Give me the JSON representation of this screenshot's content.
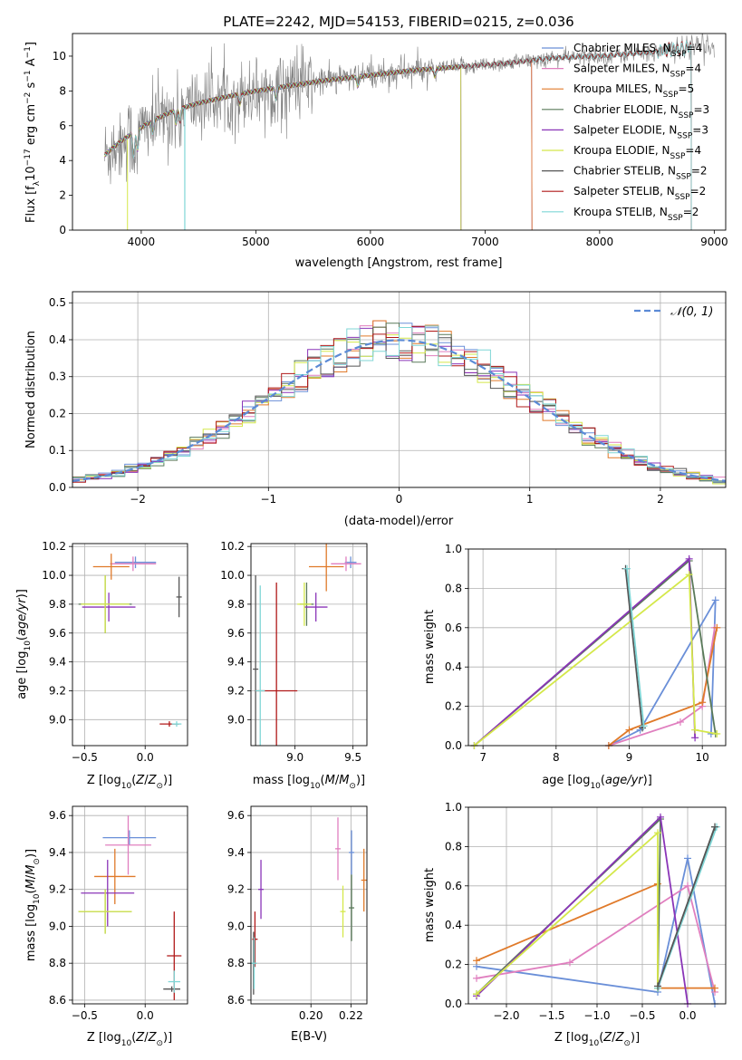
{
  "figure_title": "PLATE=2242, MJD=54153, FIBERID=0215, z=0.036",
  "colors": {
    "chabrier_miles": "#6a8fd8",
    "salpeter_miles": "#e07fbf",
    "kroupa_miles": "#e07a2a",
    "chabrier_elodie": "#5a7a5a",
    "salpeter_elodie": "#8a35b8",
    "kroupa_elodie": "#d4e84a",
    "chabrier_stelib": "#555555",
    "salpeter_stelib": "#b01818",
    "kroupa_stelib": "#7fd6d6",
    "data": "#808080",
    "normal": "#5b8ad6"
  },
  "chart_data": [
    {
      "id": "spectrum",
      "type": "line",
      "xlabel": "wavelength [Angstrom, rest frame]",
      "ylabel": "Flux [f_λ10^-17 erg cm^-2 s^-1 A^-1]",
      "xlim": [
        3400,
        9100
      ],
      "ylim": [
        0,
        11.3
      ],
      "xticks": [
        4000,
        5000,
        6000,
        7000,
        8000,
        9000
      ],
      "yticks": [
        0,
        2,
        4,
        6,
        8,
        10
      ],
      "grid": false,
      "legend_position": "right",
      "legend": [
        {
          "name": "Chabrier MILES, N",
          "sub": "SSP",
          "suffix": "=4",
          "color": "#6a8fd8"
        },
        {
          "name": "Salpeter MILES, N",
          "sub": "SSP",
          "suffix": "=4",
          "color": "#e07fbf"
        },
        {
          "name": "Kroupa MILES, N",
          "sub": "SSP",
          "suffix": "=5",
          "color": "#e07a2a"
        },
        {
          "name": "Chabrier ELODIE, N",
          "sub": "SSP",
          "suffix": "=3",
          "color": "#5a7a5a"
        },
        {
          "name": "Salpeter ELODIE, N",
          "sub": "SSP",
          "suffix": "=3",
          "color": "#8a35b8"
        },
        {
          "name": "Kroupa ELODIE, N",
          "sub": "SSP",
          "suffix": "=4",
          "color": "#d4e84a"
        },
        {
          "name": "Chabrier STELIB, N",
          "sub": "SSP",
          "suffix": "=2",
          "color": "#555555"
        },
        {
          "name": "Salpeter STELIB, N",
          "sub": "SSP",
          "suffix": "=2",
          "color": "#b01818"
        },
        {
          "name": "Kroupa STELIB, N",
          "sub": "SSP",
          "suffix": "=2",
          "color": "#7fd6d6"
        }
      ],
      "model_continuum": {
        "x": [
          3680,
          3800,
          3950,
          4100,
          4300,
          4500,
          4700,
          5000,
          5300,
          5600,
          6000,
          6400,
          6800,
          7200,
          7600,
          8000,
          8400,
          8800,
          9000
        ],
        "y": [
          4.3,
          5.0,
          5.7,
          6.3,
          6.9,
          7.3,
          7.6,
          8.0,
          8.3,
          8.6,
          8.9,
          9.2,
          9.4,
          9.6,
          9.9,
          10.0,
          10.2,
          10.5,
          10.6
        ]
      },
      "model_ranges": {
        "miles": [
          3680,
          7410
        ],
        "elodie": [
          3680,
          6790
        ],
        "stelib": [
          3680,
          8800
        ]
      },
      "data_range": [
        3680,
        9000
      ]
    },
    {
      "id": "residuals",
      "type": "line",
      "xlabel": "(data-model)/error",
      "ylabel": "Normed distribution",
      "xlim": [
        -2.5,
        2.5
      ],
      "ylim": [
        0,
        0.53
      ],
      "xticks": [
        -2,
        -1,
        0,
        1,
        2
      ],
      "yticks": [
        0.0,
        0.1,
        0.2,
        0.3,
        0.4,
        0.5
      ],
      "grid": true,
      "legend_position": "top-right",
      "legend": [
        {
          "name": "𝒩(0, 1)",
          "color": "#5b8ad6",
          "style": "dashed"
        }
      ],
      "bin_width": 0.1,
      "histogram_range": [
        -2.5,
        2.5
      ],
      "histogram_series": 9
    },
    {
      "id": "age_vs_Z",
      "type": "scatter",
      "xlabel": "Z [log10(Z/Z⊙)]",
      "ylabel": "age [log10(age/yr)]",
      "xlim": [
        -0.6,
        0.35
      ],
      "ylim": [
        8.82,
        10.22
      ],
      "xticks": [
        -0.5,
        0.0
      ],
      "yticks": [
        9.0,
        9.2,
        9.4,
        9.6,
        9.8,
        10.0,
        10.2
      ],
      "grid": true,
      "points": [
        {
          "x": -0.08,
          "y": 10.09,
          "xerr": 0.17,
          "yerr": 0.04,
          "color": "#6a8fd8"
        },
        {
          "x": -0.1,
          "y": 10.08,
          "xerr": 0.19,
          "yerr": 0.05,
          "color": "#e07fbf"
        },
        {
          "x": -0.28,
          "y": 10.06,
          "xerr": 0.15,
          "yerr": 0.09,
          "color": "#e07a2a"
        },
        {
          "x": -0.33,
          "y": 9.8,
          "xerr": 0.22,
          "yerr": 0.2,
          "color": "#5a7a5a"
        },
        {
          "x": -0.3,
          "y": 9.78,
          "xerr": 0.22,
          "yerr": 0.1,
          "color": "#8a35b8"
        },
        {
          "x": -0.33,
          "y": 9.8,
          "xerr": 0.2,
          "yerr": 0.2,
          "color": "#d4e84a"
        },
        {
          "x": 0.28,
          "y": 9.85,
          "xerr": 0.0,
          "yerr": 0.14,
          "color": "#555555"
        },
        {
          "x": 0.2,
          "y": 8.97,
          "xerr": 0.08,
          "yerr": 0.0,
          "color": "#b01818"
        },
        {
          "x": 0.26,
          "y": 8.97,
          "xerr": 0.04,
          "yerr": 0.0,
          "color": "#7fd6d6"
        }
      ]
    },
    {
      "id": "age_vs_mass",
      "type": "scatter",
      "xlabel": "mass [log10(M/M⊙)]",
      "ylabel": "",
      "xlim": [
        8.62,
        9.62
      ],
      "ylim": [
        8.82,
        10.22
      ],
      "xticks": [
        9.0,
        9.5
      ],
      "yticks": [
        9.0,
        9.2,
        9.4,
        9.6,
        9.8,
        10.0,
        10.2
      ],
      "grid": true,
      "points": [
        {
          "x": 9.48,
          "y": 10.09,
          "xerr": 0.05,
          "yerr": 0.04,
          "color": "#6a8fd8"
        },
        {
          "x": 9.44,
          "y": 10.08,
          "xerr": 0.13,
          "yerr": 0.05,
          "color": "#e07fbf"
        },
        {
          "x": 9.27,
          "y": 10.06,
          "xerr": 0.15,
          "yerr": 0.17,
          "color": "#e07a2a"
        },
        {
          "x": 9.1,
          "y": 9.8,
          "xerr": 0.06,
          "yerr": 0.15,
          "color": "#5a7a5a"
        },
        {
          "x": 9.18,
          "y": 9.78,
          "xerr": 0.1,
          "yerr": 0.1,
          "color": "#8a35b8"
        },
        {
          "x": 9.08,
          "y": 9.8,
          "xerr": 0.06,
          "yerr": 0.15,
          "color": "#d4e84a"
        },
        {
          "x": 8.66,
          "y": 9.35,
          "xerr": 0.0,
          "yerr": 0.65,
          "color": "#555555"
        },
        {
          "x": 8.84,
          "y": 9.2,
          "xerr": 0.18,
          "yerr": 0.75,
          "color": "#b01818"
        },
        {
          "x": 8.7,
          "y": 9.2,
          "xerr": 0.04,
          "yerr": 0.73,
          "color": "#7fd6d6"
        }
      ]
    },
    {
      "id": "weight_vs_age",
      "type": "line",
      "xlabel": "age [log10(age/yr)]",
      "ylabel": "mass weight",
      "xlim": [
        6.8,
        10.32
      ],
      "ylim": [
        0,
        1.0
      ],
      "xticks": [
        7,
        8,
        9,
        10
      ],
      "yticks": [
        0.0,
        0.2,
        0.4,
        0.6,
        0.8,
        1.0
      ],
      "grid": true,
      "series": [
        {
          "color": "#6a8fd8",
          "x": [
            8.72,
            9.15,
            10.18,
            10.12
          ],
          "y": [
            0.0,
            0.08,
            0.74,
            0.06
          ]
        },
        {
          "color": "#e07fbf",
          "x": [
            8.72,
            9.7,
            10.0,
            10.17
          ],
          "y": [
            0.0,
            0.12,
            0.2,
            0.6
          ]
        },
        {
          "color": "#e07a2a",
          "x": [
            8.72,
            9.0,
            10.0,
            10.2
          ],
          "y": [
            0.0,
            0.08,
            0.22,
            0.6
          ]
        },
        {
          "color": "#5a7a5a",
          "x": [
            6.88,
            9.82,
            10.18
          ],
          "y": [
            0.0,
            0.94,
            0.06
          ]
        },
        {
          "color": "#8a35b8",
          "x": [
            6.88,
            9.82,
            9.9
          ],
          "y": [
            0.0,
            0.95,
            0.04
          ]
        },
        {
          "color": "#d4e84a",
          "x": [
            6.88,
            9.82,
            9.9,
            10.2
          ],
          "y": [
            0.0,
            0.87,
            0.08,
            0.06
          ]
        },
        {
          "color": "#555555",
          "x": [
            8.95,
            9.18
          ],
          "y": [
            0.9,
            0.09
          ]
        },
        {
          "color": "#7fd6d6",
          "x": [
            8.97,
            9.2
          ],
          "y": [
            0.9,
            0.1
          ]
        }
      ]
    },
    {
      "id": "mass_vs_Z",
      "type": "scatter",
      "xlabel": "Z [log10(Z/Z⊙)]",
      "ylabel": "mass [log10(M/M⊙)]",
      "xlim": [
        -0.6,
        0.35
      ],
      "ylim": [
        8.58,
        9.65
      ],
      "xticks": [
        -0.5,
        0.0
      ],
      "yticks": [
        8.6,
        8.8,
        9.0,
        9.2,
        9.4,
        9.6
      ],
      "grid": true,
      "points": [
        {
          "x": -0.13,
          "y": 9.48,
          "xerr": 0.22,
          "yerr": 0.04,
          "color": "#6a8fd8"
        },
        {
          "x": -0.14,
          "y": 9.44,
          "xerr": 0.19,
          "yerr": 0.16,
          "color": "#e07fbf"
        },
        {
          "x": -0.25,
          "y": 9.27,
          "xerr": 0.17,
          "yerr": 0.15,
          "color": "#e07a2a"
        },
        {
          "x": -0.33,
          "y": 9.08,
          "xerr": 0.22,
          "yerr": 0.12,
          "color": "#5a7a5a"
        },
        {
          "x": -0.31,
          "y": 9.18,
          "xerr": 0.22,
          "yerr": 0.18,
          "color": "#8a35b8"
        },
        {
          "x": -0.33,
          "y": 9.08,
          "xerr": 0.22,
          "yerr": 0.12,
          "color": "#d4e84a"
        },
        {
          "x": 0.22,
          "y": 8.66,
          "xerr": 0.07,
          "yerr": 0.0,
          "color": "#555555"
        },
        {
          "x": 0.24,
          "y": 8.84,
          "xerr": 0.06,
          "yerr": 0.24,
          "color": "#b01818"
        },
        {
          "x": 0.24,
          "y": 8.7,
          "xerr": 0.05,
          "yerr": 0.06,
          "color": "#7fd6d6"
        }
      ]
    },
    {
      "id": "mass_vs_ebv",
      "type": "scatter",
      "xlabel": "E(B-V)",
      "ylabel": "",
      "xlim": [
        0.17,
        0.228
      ],
      "ylim": [
        8.58,
        9.65
      ],
      "xticks": [
        0.2,
        0.22
      ],
      "yticks": [
        8.6,
        8.8,
        9.0,
        9.2,
        9.4,
        9.6
      ],
      "grid": true,
      "points": [
        {
          "x": 0.2203,
          "y": 9.4,
          "xerr": 0.0,
          "yerr": 0.12,
          "color": "#6a8fd8"
        },
        {
          "x": 0.2135,
          "y": 9.42,
          "xerr": 0.0,
          "yerr": 0.17,
          "color": "#e07fbf"
        },
        {
          "x": 0.2265,
          "y": 9.25,
          "xerr": 0.0,
          "yerr": 0.17,
          "color": "#e07a2a"
        },
        {
          "x": 0.2203,
          "y": 9.1,
          "xerr": 0.0,
          "yerr": 0.18,
          "color": "#5a7a5a"
        },
        {
          "x": 0.175,
          "y": 9.2,
          "xerr": 0.0,
          "yerr": 0.16,
          "color": "#8a35b8"
        },
        {
          "x": 0.216,
          "y": 9.08,
          "xerr": 0.0,
          "yerr": 0.14,
          "color": "#d4e84a"
        },
        {
          "x": 0.1713,
          "y": 8.8,
          "xerr": 0.0,
          "yerr": 0.17,
          "color": "#555555"
        },
        {
          "x": 0.172,
          "y": 8.93,
          "xerr": 0.0,
          "yerr": 0.15,
          "color": "#b01818"
        },
        {
          "x": 0.1716,
          "y": 8.8,
          "xerr": 0.0,
          "yerr": 0.14,
          "color": "#7fd6d6"
        }
      ]
    },
    {
      "id": "weight_vs_Z",
      "type": "line",
      "xlabel": "Z [log10(Z/Z⊙)]",
      "ylabel": "mass weight",
      "xlim": [
        -2.42,
        0.42
      ],
      "ylim": [
        0,
        1.0
      ],
      "xticks": [
        -2.0,
        -1.5,
        -1.0,
        -0.5,
        0.0
      ],
      "yticks": [
        0.0,
        0.2,
        0.4,
        0.6,
        0.8,
        1.0
      ],
      "grid": true,
      "series": [
        {
          "color": "#6a8fd8",
          "x": [
            -2.33,
            -0.33,
            0.0,
            0.3
          ],
          "y": [
            0.19,
            0.06,
            0.74,
            0.0
          ]
        },
        {
          "color": "#e07fbf",
          "x": [
            -2.33,
            -1.3,
            0.0,
            0.3
          ],
          "y": [
            0.13,
            0.21,
            0.6,
            0.06
          ]
        },
        {
          "color": "#e07a2a",
          "x": [
            -2.33,
            -0.33,
            -0.33,
            0.3
          ],
          "y": [
            0.22,
            0.61,
            0.08,
            0.08
          ]
        },
        {
          "color": "#5a7a5a",
          "x": [
            -2.33,
            -0.3,
            -0.33,
            0.3
          ],
          "y": [
            0.05,
            0.94,
            0.08,
            0.9
          ]
        },
        {
          "color": "#8a35b8",
          "x": [
            -2.33,
            -0.3,
            0.0
          ],
          "y": [
            0.04,
            0.95,
            0.0
          ]
        },
        {
          "color": "#d4e84a",
          "x": [
            -2.33,
            -0.33,
            -0.33
          ],
          "y": [
            0.05,
            0.87,
            0.08
          ]
        },
        {
          "color": "#7fd6d6",
          "x": [
            -0.33,
            0.32
          ],
          "y": [
            0.08,
            0.9
          ]
        },
        {
          "color": "#555555",
          "x": [
            -0.33,
            0.3
          ],
          "y": [
            0.09,
            0.9
          ]
        }
      ]
    }
  ]
}
